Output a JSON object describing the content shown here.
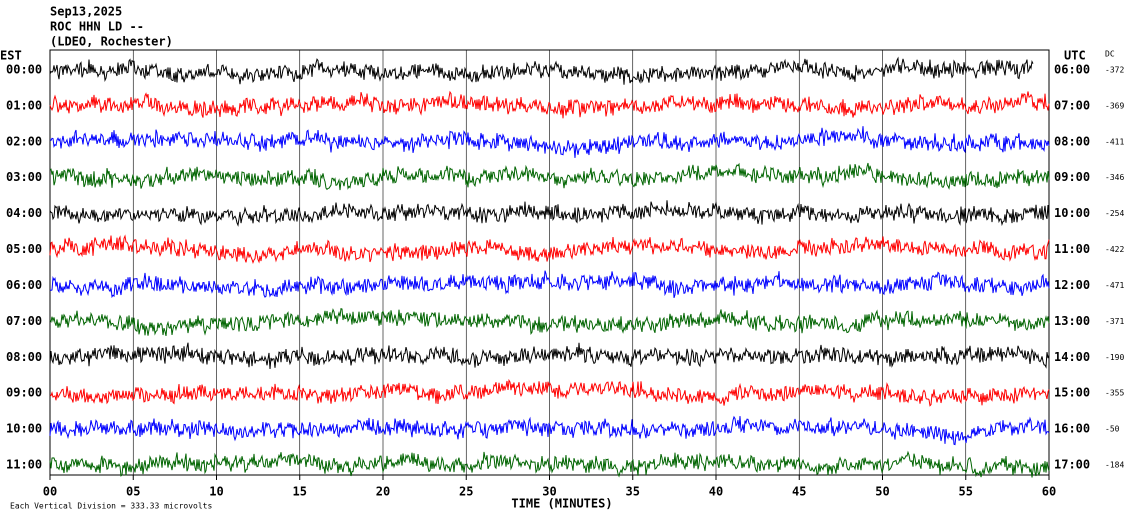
{
  "chart_data": {
    "type": "helicorder",
    "title_lines": [
      "Sep13,2025",
      "ROC HHN LD --",
      "(LDEO, Rochester)"
    ],
    "left_axis_label": "EST",
    "right_axis_label": "UTC",
    "dc_label": "DC",
    "xlabel": "TIME (MINUTES)",
    "xlim": [
      0,
      60
    ],
    "xticks": [
      {
        "value": 0,
        "label": "00"
      },
      {
        "value": 5,
        "label": "05"
      },
      10,
      15,
      20,
      25,
      30,
      35,
      40,
      45,
      50,
      55,
      60
    ],
    "grid": true,
    "rows": [
      {
        "est": "00:00",
        "utc": "06:00",
        "dc": -372,
        "color": "#000000"
      },
      {
        "est": "01:00",
        "utc": "07:00",
        "dc": -369,
        "color": "#ff0000"
      },
      {
        "est": "02:00",
        "utc": "08:00",
        "dc": -411,
        "color": "#0000ff"
      },
      {
        "est": "03:00",
        "utc": "09:00",
        "dc": -346,
        "color": "#006400"
      },
      {
        "est": "04:00",
        "utc": "10:00",
        "dc": -254,
        "color": "#000000"
      },
      {
        "est": "05:00",
        "utc": "11:00",
        "dc": -422,
        "color": "#ff0000"
      },
      {
        "est": "06:00",
        "utc": "12:00",
        "dc": -471,
        "color": "#0000ff"
      },
      {
        "est": "07:00",
        "utc": "13:00",
        "dc": -371,
        "color": "#006400"
      },
      {
        "est": "08:00",
        "utc": "14:00",
        "dc": -190,
        "color": "#000000"
      },
      {
        "est": "09:00",
        "utc": "15:00",
        "dc": -355,
        "color": "#ff0000"
      },
      {
        "est": "10:00",
        "utc": "16:00",
        "dc": -50,
        "color": "#0000ff"
      },
      {
        "est": "11:00",
        "utc": "17:00",
        "dc": -184,
        "color": "#006400"
      }
    ],
    "footer": "Each Vertical Division =  333.33 microvolts"
  }
}
